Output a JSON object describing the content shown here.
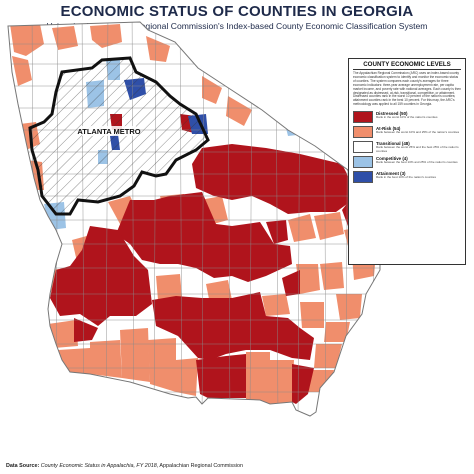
{
  "title": "ECONOMIC STATUS OF COUNTIES IN GEORGIA",
  "subtitle": "Using the Appalachian Regional Commission's Index-based County Economic Classification System",
  "metro_label": "ATLANTA METRO",
  "legend": {
    "title": "COUNTY ECONOMIC LEVELS",
    "description": "The Appalachian Regional Commission (ARC) uses an index-based county economic classification system to identify and monitor the economic status of counties. The system compares each county's averages for three economic indicators: three-year average unemployment rate, per capita market income, and poverty rate with national averages. Each county is then designated as distressed, at-risk, transitional, competitive, or attainment. Distressed counties rank in the worst 10 percent of the nation's counties; attainment counties rank in the best 10 percent. For this map, the ARC's methodology was applied to all 159 counties in Georgia.",
    "items": [
      {
        "label": "Distressed (50)",
        "color": "#b0141c",
        "note": "Rank in the worst 10% of the nation's counties"
      },
      {
        "label": "At-Risk (54)",
        "color": "#f08e6c",
        "note": "Rank between the worst 10% and 25% of the nation's counties"
      },
      {
        "label": "Transitional (48)",
        "color": "#ffffff",
        "note": "Rank between the worst 25% and the best 25% of the nation's counties"
      },
      {
        "label": "Competitive (4)",
        "color": "#9cc3e6",
        "note": "Rank between the best 10% and 25% of the nation's counties"
      },
      {
        "label": "Attainment (3)",
        "color": "#2f4fa8",
        "note": "Rank in the best 10% of the nation's counties"
      }
    ]
  },
  "source": {
    "prefix": "Data Source: ",
    "publication": "County Economic Status in Appalachia, FY 2018",
    "suffix": ", Appalachian Regional Commission"
  },
  "colors": {
    "distressed": "#b0141c",
    "at_risk": "#f08e6c",
    "transitional": "#ffffff",
    "competitive": "#9cc3e6",
    "attainment": "#2f4fa8",
    "border": "#8a8a8a",
    "metro_outline": "#111111",
    "title": "#1e2a4a"
  }
}
